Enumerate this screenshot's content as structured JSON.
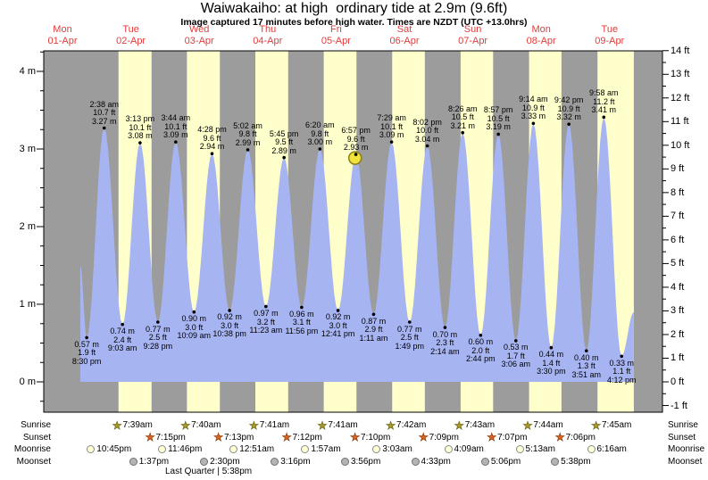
{
  "header": {
    "title": "Waiwakaiho: at high  ordinary tide at 2.9m (9.6ft)",
    "subtitle": "Image captured 17 minutes before high water. Times are NZDT (UTC +13.0hrs)"
  },
  "colors": {
    "daylight_band": "#ffffcc",
    "night_band": "#9c9c9c",
    "tide_fill": "#a7b4f2",
    "date_red": "#e23b3b",
    "marker_fill": "#f2e23c",
    "marker_stroke": "#88801a",
    "sunrise_star": "#a89a28",
    "sunset_star": "#e0641c",
    "moonrise_fill": "#ffffd6",
    "moonset_fill": "#b4b4b4"
  },
  "chart_data": {
    "type": "area",
    "title": "Waiwakaiho: at high  ordinary tide at 2.9m (9.6ft)",
    "ylabel_left_unit": "m",
    "ylabel_right_unit": "ft",
    "ylim_m": [
      -0.39,
      4.26
    ],
    "grid": false,
    "days": [
      {
        "dow": "Mon",
        "date": "01-Apr"
      },
      {
        "dow": "Tue",
        "date": "02-Apr"
      },
      {
        "dow": "Wed",
        "date": "03-Apr"
      },
      {
        "dow": "Thu",
        "date": "04-Apr"
      },
      {
        "dow": "Fri",
        "date": "05-Apr"
      },
      {
        "dow": "Sat",
        "date": "06-Apr"
      },
      {
        "dow": "Sun",
        "date": "07-Apr"
      },
      {
        "dow": "Mon",
        "date": "08-Apr"
      },
      {
        "dow": "Tue",
        "date": "09-Apr"
      }
    ],
    "y_axis_left": {
      "labels": [
        "4 m",
        "3 m",
        "2 m",
        "1 m",
        "0 m"
      ],
      "values": [
        4,
        3,
        2,
        1,
        0
      ],
      "minor_step_m": 0.25
    },
    "y_axis_right": {
      "labels": [
        "14 ft",
        "13 ft",
        "12 ft",
        "11 ft",
        "10 ft",
        "9 ft",
        "8 ft",
        "7 ft",
        "6 ft",
        "5 ft",
        "4 ft",
        "3 ft",
        "2 ft",
        "1 ft",
        "0 ft",
        "-1 ft"
      ],
      "values": [
        14,
        13,
        12,
        11,
        10,
        9,
        8,
        7,
        6,
        5,
        4,
        3,
        2,
        1,
        0,
        -1
      ],
      "minor_step_ft": 0.5
    },
    "tides": [
      {
        "t": "L",
        "day": "01-Apr",
        "time": "8:30 pm",
        "ft": 1.9,
        "m": 0.57
      },
      {
        "t": "H",
        "day": "02-Apr",
        "time": "2:38 am",
        "ft": 10.7,
        "m": 3.27
      },
      {
        "t": "L",
        "day": "02-Apr",
        "time": "9:03 am",
        "ft": 2.4,
        "m": 0.74
      },
      {
        "t": "H",
        "day": "02-Apr",
        "time": "3:13 pm",
        "ft": 10.1,
        "m": 3.08
      },
      {
        "t": "L",
        "day": "02-Apr",
        "time": "9:28 pm",
        "ft": 2.5,
        "m": 0.77
      },
      {
        "t": "H",
        "day": "03-Apr",
        "time": "3:44 am",
        "ft": 10.1,
        "m": 3.09
      },
      {
        "t": "L",
        "day": "03-Apr",
        "time": "10:09 am",
        "ft": 3.0,
        "m": 0.9
      },
      {
        "t": "H",
        "day": "03-Apr",
        "time": "4:28 pm",
        "ft": 9.6,
        "m": 2.94
      },
      {
        "t": "L",
        "day": "03-Apr",
        "time": "10:38 pm",
        "ft": 3.0,
        "m": 0.92
      },
      {
        "t": "H",
        "day": "04-Apr",
        "time": "5:02 am",
        "ft": 9.8,
        "m": 2.99
      },
      {
        "t": "L",
        "day": "04-Apr",
        "time": "11:23 am",
        "ft": 3.2,
        "m": 0.97
      },
      {
        "t": "H",
        "day": "04-Apr",
        "time": "5:45 pm",
        "ft": 9.5,
        "m": 2.89
      },
      {
        "t": "L",
        "day": "04-Apr",
        "time": "11:56 pm",
        "ft": 3.1,
        "m": 0.96
      },
      {
        "t": "H",
        "day": "05-Apr",
        "time": "6:20 am",
        "ft": 9.8,
        "m": 3.0
      },
      {
        "t": "L",
        "day": "05-Apr",
        "time": "12:41 pm",
        "ft": 3.0,
        "m": 0.92
      },
      {
        "t": "H",
        "day": "05-Apr",
        "time": "6:57 pm",
        "ft": 9.6,
        "m": 2.93
      },
      {
        "t": "L",
        "day": "06-Apr",
        "time": "1:11 am",
        "ft": 2.9,
        "m": 0.87
      },
      {
        "t": "H",
        "day": "06-Apr",
        "time": "7:29 am",
        "ft": 10.1,
        "m": 3.09
      },
      {
        "t": "L",
        "day": "06-Apr",
        "time": "1:49 pm",
        "ft": 2.5,
        "m": 0.77
      },
      {
        "t": "H",
        "day": "06-Apr",
        "time": "8:02 pm",
        "ft": 10.0,
        "m": 3.04
      },
      {
        "t": "L",
        "day": "07-Apr",
        "time": "2:14 am",
        "ft": 2.3,
        "m": 0.7
      },
      {
        "t": "H",
        "day": "07-Apr",
        "time": "8:26 am",
        "ft": 10.5,
        "m": 3.21
      },
      {
        "t": "L",
        "day": "07-Apr",
        "time": "2:44 pm",
        "ft": 2.0,
        "m": 0.6
      },
      {
        "t": "H",
        "day": "07-Apr",
        "time": "8:57 pm",
        "ft": 10.5,
        "m": 3.19
      },
      {
        "t": "L",
        "day": "08-Apr",
        "time": "3:06 am",
        "ft": 1.7,
        "m": 0.53
      },
      {
        "t": "H",
        "day": "08-Apr",
        "time": "9:14 am",
        "ft": 10.9,
        "m": 3.33
      },
      {
        "t": "L",
        "day": "08-Apr",
        "time": "3:30 pm",
        "ft": 1.4,
        "m": 0.44
      },
      {
        "t": "H",
        "day": "08-Apr",
        "time": "9:42 pm",
        "ft": 10.9,
        "m": 3.32
      },
      {
        "t": "L",
        "day": "09-Apr",
        "time": "3:51 am",
        "ft": 1.3,
        "m": 0.4
      },
      {
        "t": "H",
        "day": "09-Apr",
        "time": "9:58 am",
        "ft": 11.2,
        "m": 3.41
      },
      {
        "t": "L",
        "day": "09-Apr",
        "time": "4:12 pm",
        "ft": 1.1,
        "m": 0.33
      }
    ],
    "curve_start": {
      "day": "01-Apr",
      "time": "6:15 pm",
      "m": 1.5
    },
    "curve_end": {
      "day": "09-Apr",
      "time": "8:30 pm",
      "m": 0.9
    },
    "current_marker": {
      "day": "05-Apr",
      "time": "6:40 pm",
      "m": 2.93
    },
    "sun_moon": {
      "sunrise": {
        "label": "Sunrise",
        "events": [
          {
            "day": "02-Apr",
            "time": "7:39am"
          },
          {
            "day": "03-Apr",
            "time": "7:40am"
          },
          {
            "day": "04-Apr",
            "time": "7:41am"
          },
          {
            "day": "05-Apr",
            "time": "7:41am"
          },
          {
            "day": "06-Apr",
            "time": "7:42am"
          },
          {
            "day": "07-Apr",
            "time": "7:43am"
          },
          {
            "day": "08-Apr",
            "time": "7:44am"
          },
          {
            "day": "09-Apr",
            "time": "7:45am"
          }
        ]
      },
      "sunset": {
        "label": "Sunset",
        "events": [
          {
            "day": "02-Apr",
            "time": "7:15pm"
          },
          {
            "day": "03-Apr",
            "time": "7:13pm"
          },
          {
            "day": "04-Apr",
            "time": "7:12pm"
          },
          {
            "day": "05-Apr",
            "time": "7:10pm"
          },
          {
            "day": "06-Apr",
            "time": "7:09pm"
          },
          {
            "day": "07-Apr",
            "time": "7:07pm"
          },
          {
            "day": "08-Apr",
            "time": "7:06pm"
          }
        ]
      },
      "moonrise": {
        "label": "Moonrise",
        "events": [
          {
            "day": "01-Apr",
            "time": "10:45pm"
          },
          {
            "day": "02-Apr",
            "time": "11:46pm"
          },
          {
            "day": "04-Apr",
            "time": "12:51am"
          },
          {
            "day": "05-Apr",
            "time": "1:57am"
          },
          {
            "day": "06-Apr",
            "time": "3:03am"
          },
          {
            "day": "07-Apr",
            "time": "4:09am"
          },
          {
            "day": "08-Apr",
            "time": "5:13am"
          },
          {
            "day": "09-Apr",
            "time": "6:16am"
          }
        ]
      },
      "moonset": {
        "label": "Moonset",
        "events": [
          {
            "day": "02-Apr",
            "time": "1:37pm"
          },
          {
            "day": "03-Apr",
            "time": "2:30pm"
          },
          {
            "day": "04-Apr",
            "time": "3:16pm"
          },
          {
            "day": "05-Apr",
            "time": "3:56pm"
          },
          {
            "day": "06-Apr",
            "time": "4:33pm"
          },
          {
            "day": "07-Apr",
            "time": "5:06pm"
          },
          {
            "day": "08-Apr",
            "time": "5:38pm"
          }
        ]
      }
    },
    "moon_phase": "Last Quarter | 5:38pm"
  }
}
